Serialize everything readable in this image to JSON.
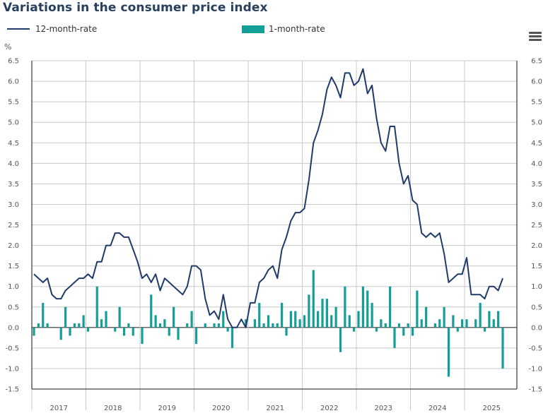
{
  "header": {
    "title": "Variations in the consumer price index",
    "menu_icon": "hamburger-menu-icon"
  },
  "legend": {
    "line_label": "12-month-rate",
    "bar_label": "1-month-rate"
  },
  "colors": {
    "line": "#1f3a6b",
    "bar": "#139e97",
    "grid": "#c8c8c8",
    "axis": "#555555"
  },
  "chart_data": {
    "type": "bar+line",
    "title": "Variations in the consumer price index",
    "ylabel": "%",
    "ylim": [
      -1.5,
      6.5
    ],
    "yticks": [
      "6.5",
      "6.0",
      "5.5",
      "5.0",
      "4.5",
      "4.0",
      "3.5",
      "3.0",
      "2.5",
      "2.0",
      "1.5",
      "1.0",
      "0.5",
      "0.0",
      "-0.5",
      "-1.0",
      "-1.5"
    ],
    "ytick_values": [
      6.5,
      6.0,
      5.5,
      5.0,
      4.5,
      4.0,
      3.5,
      3.0,
      2.5,
      2.0,
      1.5,
      1.0,
      0.5,
      0.0,
      -0.5,
      -1.0,
      -1.5
    ],
    "xlabels": [
      "2017",
      "2018",
      "2019",
      "2020",
      "2021",
      "2022",
      "2023",
      "2024",
      "2025"
    ],
    "x_start": "2017-01",
    "x_unit": "month",
    "grid": true,
    "legend_position": "top",
    "series": [
      {
        "name": "12-month-rate",
        "type": "line",
        "values": [
          1.3,
          1.2,
          1.1,
          1.2,
          0.8,
          0.7,
          0.7,
          0.9,
          1.0,
          1.1,
          1.2,
          1.2,
          1.3,
          1.2,
          1.6,
          1.6,
          2.0,
          2.0,
          2.3,
          2.3,
          2.2,
          2.2,
          1.9,
          1.6,
          1.2,
          1.3,
          1.1,
          1.3,
          0.9,
          1.2,
          1.1,
          1.0,
          0.9,
          0.8,
          1.0,
          1.5,
          1.5,
          1.4,
          0.7,
          0.3,
          0.4,
          0.2,
          0.8,
          0.2,
          0.0,
          0.0,
          0.2,
          0.0,
          0.6,
          0.6,
          1.1,
          1.2,
          1.4,
          1.5,
          1.2,
          1.9,
          2.2,
          2.6,
          2.8,
          2.8,
          2.9,
          3.6,
          4.5,
          4.8,
          5.2,
          5.8,
          6.1,
          5.9,
          5.6,
          6.2,
          6.2,
          5.9,
          6.0,
          6.3,
          5.7,
          5.9,
          5.1,
          4.5,
          4.3,
          4.9,
          4.9,
          4.0,
          3.5,
          3.7,
          3.1,
          3.0,
          2.3,
          2.2,
          2.3,
          2.2,
          2.3,
          1.8,
          1.1,
          1.2,
          1.3,
          1.3,
          1.7,
          0.8,
          0.8,
          0.8,
          0.7,
          1.0,
          1.0,
          0.9,
          1.2
        ]
      },
      {
        "name": "1-month-rate",
        "type": "bar",
        "values": [
          -0.2,
          0.1,
          0.6,
          0.1,
          0.0,
          0.0,
          -0.3,
          0.5,
          -0.2,
          0.1,
          0.1,
          0.3,
          -0.1,
          0.0,
          1.0,
          0.2,
          0.4,
          0.0,
          -0.1,
          0.5,
          -0.2,
          0.1,
          -0.2,
          0.0,
          -0.4,
          0.0,
          0.8,
          0.3,
          0.1,
          0.2,
          -0.2,
          0.5,
          -0.3,
          0.0,
          0.1,
          0.4,
          -0.4,
          0.0,
          0.1,
          0.0,
          0.1,
          0.1,
          0.4,
          -0.1,
          -0.5,
          0.0,
          0.0,
          0.2,
          0.0,
          0.2,
          0.6,
          0.1,
          0.3,
          0.1,
          0.1,
          0.6,
          -0.2,
          0.4,
          0.4,
          0.2,
          0.3,
          0.8,
          1.4,
          0.4,
          0.7,
          0.7,
          0.3,
          0.5,
          -0.6,
          1.0,
          0.3,
          -0.1,
          0.4,
          1.0,
          0.9,
          0.6,
          -0.1,
          0.2,
          0.1,
          1.0,
          -0.5,
          0.1,
          -0.2,
          0.1,
          -0.2,
          0.9,
          0.2,
          0.5,
          0.0,
          0.1,
          0.2,
          0.5,
          -1.2,
          0.3,
          -0.1,
          0.2,
          0.2,
          0.0,
          0.2,
          0.6,
          -0.1,
          0.4,
          0.2,
          0.4,
          -1.0
        ]
      }
    ]
  }
}
